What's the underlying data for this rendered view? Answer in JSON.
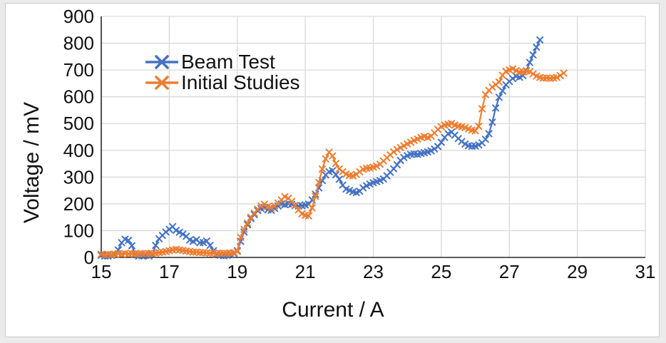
{
  "page": {
    "background_color": "#ebebeb",
    "card_background": "#ffffff",
    "card_border_color": "#c9c9c9"
  },
  "chart_data": {
    "type": "line",
    "title": "",
    "xlabel": "Current / A",
    "ylabel": "Voltage / mV",
    "xlim": [
      15,
      31
    ],
    "ylim": [
      0,
      900
    ],
    "xticks": [
      15,
      17,
      19,
      21,
      23,
      25,
      27,
      29,
      31
    ],
    "yticks": [
      0,
      100,
      200,
      300,
      400,
      500,
      600,
      700,
      800,
      900
    ],
    "grid": true,
    "gridline_color": "#d9d9d9",
    "axis_line_color": "#262626",
    "legend_position": "inside-top-left",
    "marker_style": "x",
    "series": [
      {
        "name": "Beam Test",
        "color": "#4472C4",
        "x_start": 15.0,
        "x_step": 0.1,
        "values": [
          8,
          5,
          5,
          8,
          10,
          28,
          55,
          68,
          64,
          44,
          12,
          5,
          6,
          8,
          5,
          10,
          45,
          70,
          82,
          95,
          105,
          115,
          101,
          94,
          87,
          79,
          65,
          60,
          66,
          55,
          56,
          61,
          45,
          25,
          12,
          8,
          6,
          8,
          10,
          15,
          25,
          60,
          95,
          122,
          145,
          160,
          175,
          183,
          186,
          178,
          176,
          183,
          192,
          200,
          197,
          200,
          198,
          193,
          192,
          193,
          196,
          199,
          215,
          236,
          260,
          287,
          308,
          320,
          324,
          309,
          292,
          270,
          255,
          250,
          245,
          242,
          247,
          260,
          268,
          274,
          279,
          283,
          287,
          293,
          305,
          318,
          331,
          346,
          362,
          373,
          380,
          385,
          386,
          385,
          388,
          391,
          394,
          398,
          405,
          414,
          430,
          448,
          462,
          468,
          457,
          444,
          433,
          423,
          417,
          415,
          416,
          420,
          428,
          441,
          462,
          505,
          558,
          598,
          622,
          645,
          657,
          668,
          676,
          673,
          679,
          697,
          728,
          756,
          785,
          812
        ]
      },
      {
        "name": "Initial Studies",
        "color": "#ED7D31",
        "x_start": 15.0,
        "x_step": 0.1,
        "values": [
          12,
          10,
          12,
          10,
          12,
          14,
          12,
          15,
          13,
          14,
          15,
          13,
          14,
          15,
          14,
          15,
          16,
          18,
          20,
          22,
          25,
          28,
          30,
          28,
          26,
          24,
          22,
          20,
          20,
          18,
          18,
          17,
          16,
          16,
          15,
          15,
          16,
          15,
          16,
          18,
          22,
          75,
          105,
          128,
          150,
          165,
          180,
          192,
          199,
          190,
          185,
          192,
          203,
          215,
          227,
          221,
          209,
          194,
          178,
          163,
          157,
          155,
          185,
          228,
          280,
          330,
          368,
          393,
          379,
          351,
          330,
          320,
          311,
          306,
          305,
          310,
          320,
          329,
          333,
          334,
          337,
          341,
          348,
          360,
          372,
          383,
          394,
          403,
          410,
          417,
          424,
          430,
          437,
          442,
          448,
          451,
          448,
          453,
          465,
          478,
          488,
          494,
          497,
          500,
          494,
          490,
          488,
          485,
          480,
          475,
          473,
          490,
          555,
          608,
          624,
          636,
          645,
          655,
          680,
          695,
          700,
          704,
          698,
          692,
          693,
          696,
          694,
          685,
          677,
          672,
          670,
          670,
          669,
          670,
          672,
          679,
          688
        ]
      }
    ]
  }
}
